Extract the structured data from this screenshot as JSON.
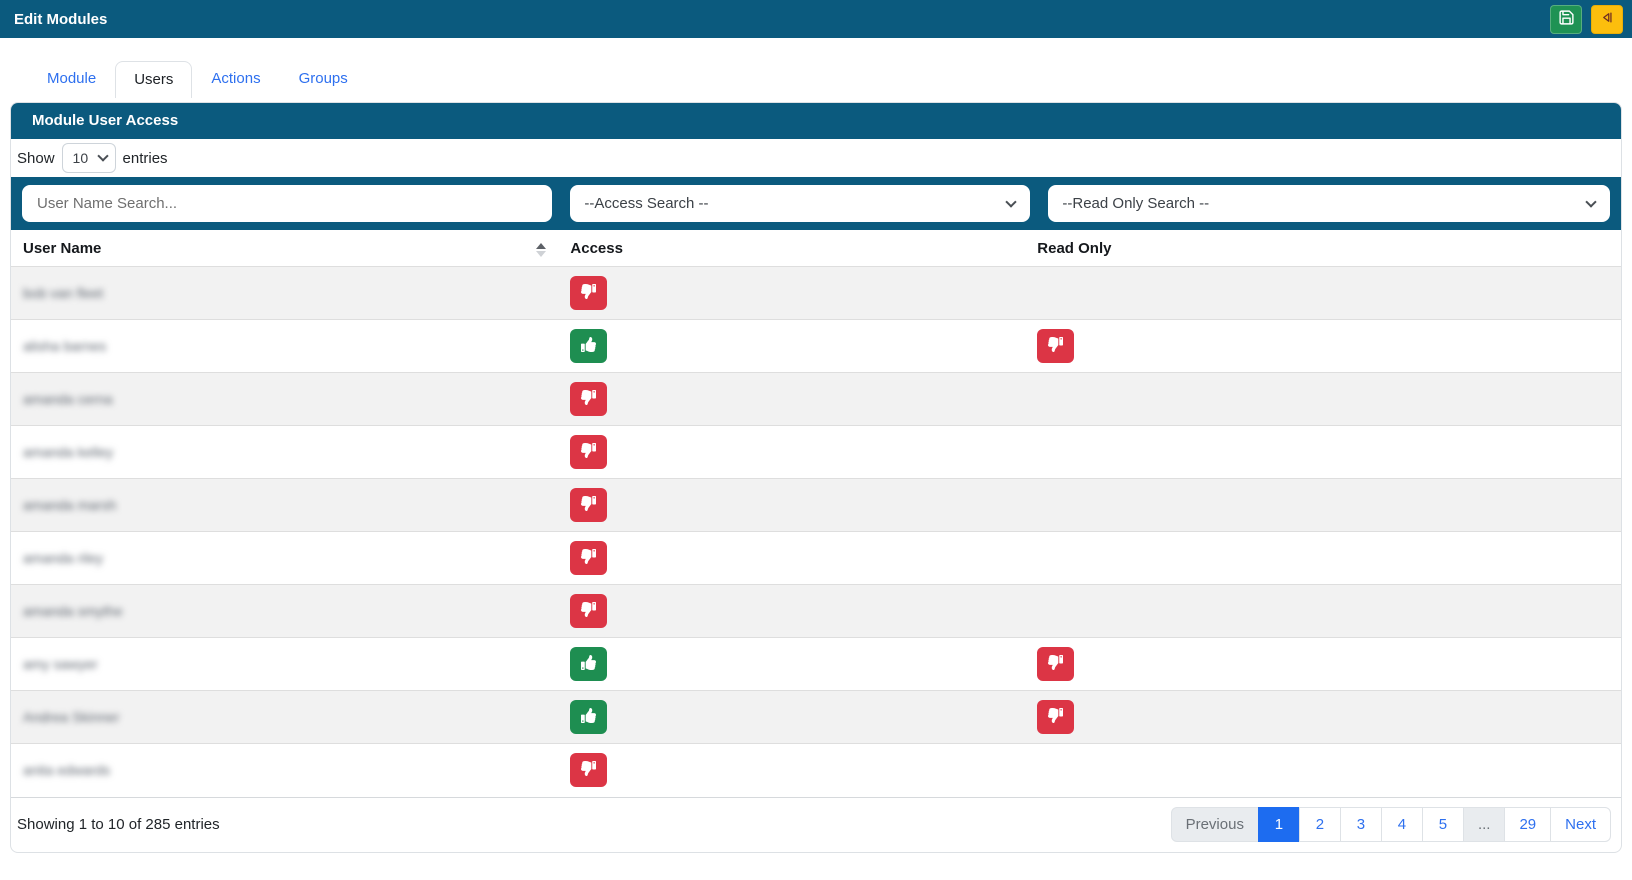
{
  "colors": {
    "teal": "#0b5a7e",
    "success_green": "#1e8e51",
    "danger_red": "#dc3545",
    "warning_yellow": "#fcbe0d",
    "link_blue": "#2e70ef",
    "active_page_blue": "#1d6cf0"
  },
  "navbar": {
    "title": "Edit Modules",
    "buttons": [
      {
        "name": "save",
        "icon": "save-icon"
      },
      {
        "name": "back",
        "icon": "skip-back-icon"
      }
    ]
  },
  "tabs": [
    {
      "label": "Module",
      "active": false
    },
    {
      "label": "Users",
      "active": true
    },
    {
      "label": "Actions",
      "active": false
    },
    {
      "label": "Groups",
      "active": false
    }
  ],
  "panel": {
    "title": "Module User Access"
  },
  "length_control": {
    "prefix": "Show",
    "value": "10",
    "suffix": "entries"
  },
  "filters": {
    "user_name": {
      "placeholder": "User Name Search..."
    },
    "access": {
      "selected": "--Access Search --"
    },
    "read_only": {
      "selected": "--Read Only Search --"
    }
  },
  "table": {
    "names_redacted": true,
    "columns": [
      {
        "label": "User Name",
        "sort": "asc",
        "sort_icon": "sort-asc-icon"
      },
      {
        "label": "Access"
      },
      {
        "label": "Read Only"
      }
    ],
    "icon_map": {
      "allow": "thumbs-up-icon",
      "deny": "thumbs-down-icon"
    },
    "rows": [
      {
        "name": "bob van fleet",
        "access": "deny",
        "read_only": ""
      },
      {
        "name": "alisha barnes",
        "access": "allow",
        "read_only": "deny"
      },
      {
        "name": "amanda cerna",
        "access": "deny",
        "read_only": ""
      },
      {
        "name": "amanda kelley",
        "access": "deny",
        "read_only": ""
      },
      {
        "name": "amanda marsh",
        "access": "deny",
        "read_only": ""
      },
      {
        "name": "amanda riley",
        "access": "deny",
        "read_only": ""
      },
      {
        "name": "amanda smythe",
        "access": "deny",
        "read_only": ""
      },
      {
        "name": "amy sawyer",
        "access": "allow",
        "read_only": "deny"
      },
      {
        "name": "Andrea Skinner",
        "access": "allow",
        "read_only": "deny"
      },
      {
        "name": "anita edwards",
        "access": "deny",
        "read_only": ""
      }
    ]
  },
  "footer": {
    "summary": "Showing 1 to 10 of 285 entries",
    "pagination": [
      {
        "label": "Previous",
        "state": "disabled"
      },
      {
        "label": "1",
        "state": "active"
      },
      {
        "label": "2",
        "state": "link"
      },
      {
        "label": "3",
        "state": "link"
      },
      {
        "label": "4",
        "state": "link"
      },
      {
        "label": "5",
        "state": "link"
      },
      {
        "label": "...",
        "state": "disabled"
      },
      {
        "label": "29",
        "state": "link"
      },
      {
        "label": "Next",
        "state": "link"
      }
    ]
  }
}
